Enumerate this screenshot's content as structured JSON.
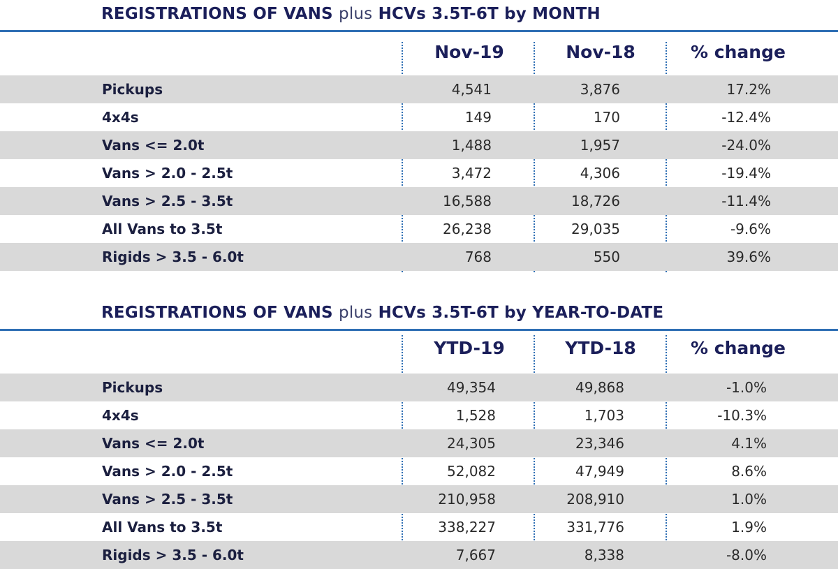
{
  "sections": [
    {
      "title_prefix": "REGISTRATIONS OF VANS",
      "title_plus": "plus",
      "title_suffix": "HCVs 3.5T-6T by MONTH",
      "columns": [
        "Nov-19",
        "Nov-18",
        "% change"
      ],
      "rows": [
        {
          "label": "Pickups",
          "a": "4,541",
          "b": "3,876",
          "c": "17.2%"
        },
        {
          "label": "4x4s",
          "a": "149",
          "b": "170",
          "c": "-12.4%"
        },
        {
          "label": "Vans <= 2.0t",
          "a": "1,488",
          "b": "1,957",
          "c": "-24.0%"
        },
        {
          "label": "Vans > 2.0 - 2.5t",
          "a": "3,472",
          "b": "4,306",
          "c": "-19.4%"
        },
        {
          "label": "Vans > 2.5 - 3.5t",
          "a": "16,588",
          "b": "18,726",
          "c": "-11.4%"
        },
        {
          "label": "All Vans to 3.5t",
          "a": "26,238",
          "b": "29,035",
          "c": "-9.6%"
        },
        {
          "label": "Rigids > 3.5 - 6.0t",
          "a": "768",
          "b": "550",
          "c": "39.6%"
        }
      ]
    },
    {
      "title_prefix": "REGISTRATIONS OF VANS",
      "title_plus": "plus",
      "title_suffix": "HCVs 3.5T-6T by YEAR-TO-DATE",
      "columns": [
        "YTD-19",
        "YTD-18",
        "% change"
      ],
      "rows": [
        {
          "label": "Pickups",
          "a": "49,354",
          "b": "49,868",
          "c": "-1.0%"
        },
        {
          "label": "4x4s",
          "a": "1,528",
          "b": "1,703",
          "c": "-10.3%"
        },
        {
          "label": "Vans <= 2.0t",
          "a": "24,305",
          "b": "23,346",
          "c": "4.1%"
        },
        {
          "label": "Vans > 2.0 - 2.5t",
          "a": "52,082",
          "b": "47,949",
          "c": "8.6%"
        },
        {
          "label": "Vans > 2.5 - 3.5t",
          "a": "210,958",
          "b": "208,910",
          "c": "1.0%"
        },
        {
          "label": "All Vans to 3.5t",
          "a": "338,227",
          "b": "331,776",
          "c": "1.9%"
        },
        {
          "label": "Rigids > 3.5 - 6.0t",
          "a": "7,667",
          "b": "8,338",
          "c": "-8.0%"
        }
      ]
    }
  ],
  "colors": {
    "title": "#1b1f5a",
    "rule": "#2f6fb4",
    "row_shade": "#d9d9d9"
  }
}
